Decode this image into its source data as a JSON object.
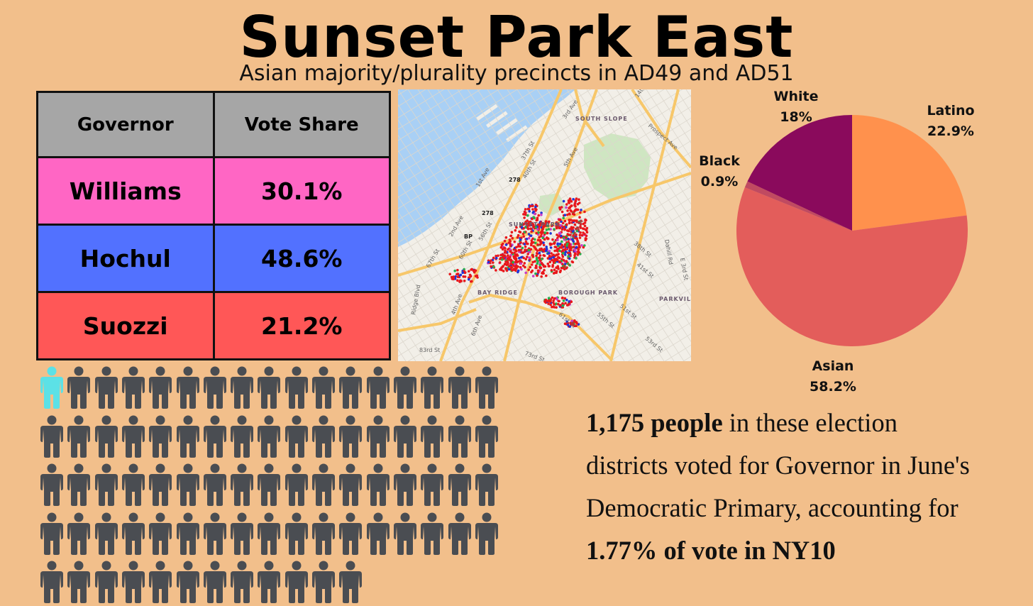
{
  "title": "Sunset Park East",
  "subtitle": "Asian majority/plurality precincts in AD49 and AD51",
  "table": {
    "headers": [
      "Governor",
      "Vote Share"
    ],
    "rows": [
      {
        "name": "Williams",
        "share": "30.1%",
        "color": "#ff66c4"
      },
      {
        "name": "Hochul",
        "share": "48.6%",
        "color": "#5271ff"
      },
      {
        "name": "Suozzi",
        "share": "21.2%",
        "color": "#ff5757"
      }
    ]
  },
  "map": {
    "labels": [
      {
        "text": "SOUTH SLOPE",
        "kind": "neighborhood"
      },
      {
        "text": "SUNSET PARK",
        "kind": "neighborhood"
      },
      {
        "text": "BAY RIDGE",
        "kind": "neighborhood"
      },
      {
        "text": "BOROUGH PARK",
        "kind": "neighborhood"
      },
      {
        "text": "PARKVILL",
        "kind": "neighborhood"
      },
      {
        "text": "278",
        "kind": "route"
      },
      {
        "text": "278",
        "kind": "route"
      },
      {
        "text": "BP",
        "kind": "route"
      },
      {
        "text": "14th St",
        "kind": "street"
      },
      {
        "text": "3rd Ave",
        "kind": "street"
      },
      {
        "text": "Prospect Ave",
        "kind": "street"
      },
      {
        "text": "37th St",
        "kind": "street"
      },
      {
        "text": "40th St",
        "kind": "street"
      },
      {
        "text": "5th Ave",
        "kind": "street"
      },
      {
        "text": "1st Ave",
        "kind": "street"
      },
      {
        "text": "2nd Ave",
        "kind": "street"
      },
      {
        "text": "56th St",
        "kind": "street"
      },
      {
        "text": "60th St",
        "kind": "street"
      },
      {
        "text": "67th St",
        "kind": "street"
      },
      {
        "text": "42nd St",
        "kind": "street"
      },
      {
        "text": "38th St",
        "kind": "street"
      },
      {
        "text": "Dahill Rd",
        "kind": "street"
      },
      {
        "text": "E 3rd St",
        "kind": "street"
      },
      {
        "text": "41st St",
        "kind": "street"
      },
      {
        "text": "Ridge Blvd",
        "kind": "street"
      },
      {
        "text": "4th Ave",
        "kind": "street"
      },
      {
        "text": "6th Ave",
        "kind": "street"
      },
      {
        "text": "61st St",
        "kind": "street"
      },
      {
        "text": "51st St",
        "kind": "street"
      },
      {
        "text": "55th St",
        "kind": "street"
      },
      {
        "text": "53rd St",
        "kind": "street"
      },
      {
        "text": "83rd St",
        "kind": "street"
      },
      {
        "text": "73rd St",
        "kind": "street"
      }
    ],
    "colors": {
      "land": "#f2efe8",
      "water": "#a9d0f5",
      "park": "#cfe6c2",
      "major_road": "#f7c76a",
      "minor_road": "#ffffff",
      "dot_colors": [
        "#e8171b",
        "#1f35d6",
        "#23b14d",
        "#c93cc6"
      ]
    }
  },
  "chart_data": {
    "type": "pie",
    "categories": [
      "Latino",
      "Asian",
      "Black",
      "White"
    ],
    "values": [
      22.9,
      58.2,
      0.9,
      18
    ],
    "labels": [
      "22.9%",
      "58.2%",
      "0.9%",
      "18%"
    ],
    "colors": [
      "#ff914d",
      "#e35d5b",
      "#c04a61",
      "#8a0a5c"
    ],
    "start_angle_deg": 0,
    "direction": "clockwise"
  },
  "people": {
    "total_icons": 80,
    "highlighted_icons": 1,
    "icons_per_row": 17,
    "highlight_color": "#5ce1e6",
    "base_color": "#4a4d52"
  },
  "summary": {
    "line1_bold": "1,175 people",
    "line1_rest": " in these election",
    "line2": "districts voted for Governor in June's",
    "line3": "Democratic Primary, accounting for",
    "line4_bold": "1.77% of vote in NY10"
  }
}
